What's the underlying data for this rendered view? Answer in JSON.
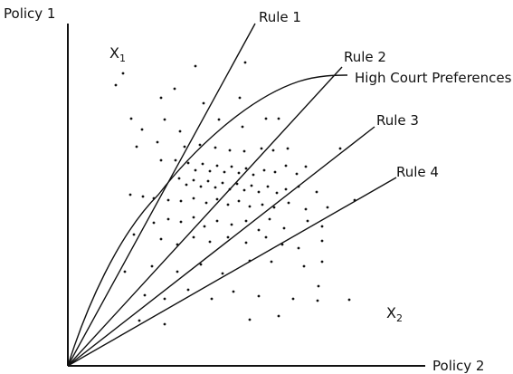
{
  "axes": {
    "y_label": "Policy 1",
    "x_label": "Policy 2"
  },
  "variables": {
    "x1": {
      "base": "X",
      "subscript": "1"
    },
    "x2": {
      "base": "X",
      "subscript": "2"
    }
  },
  "rules": [
    {
      "label": "Rule 1"
    },
    {
      "label": "Rule 2"
    },
    {
      "label": "Rule 3"
    },
    {
      "label": "Rule 4"
    }
  ],
  "curve": {
    "label": "High Court Preferences"
  }
}
